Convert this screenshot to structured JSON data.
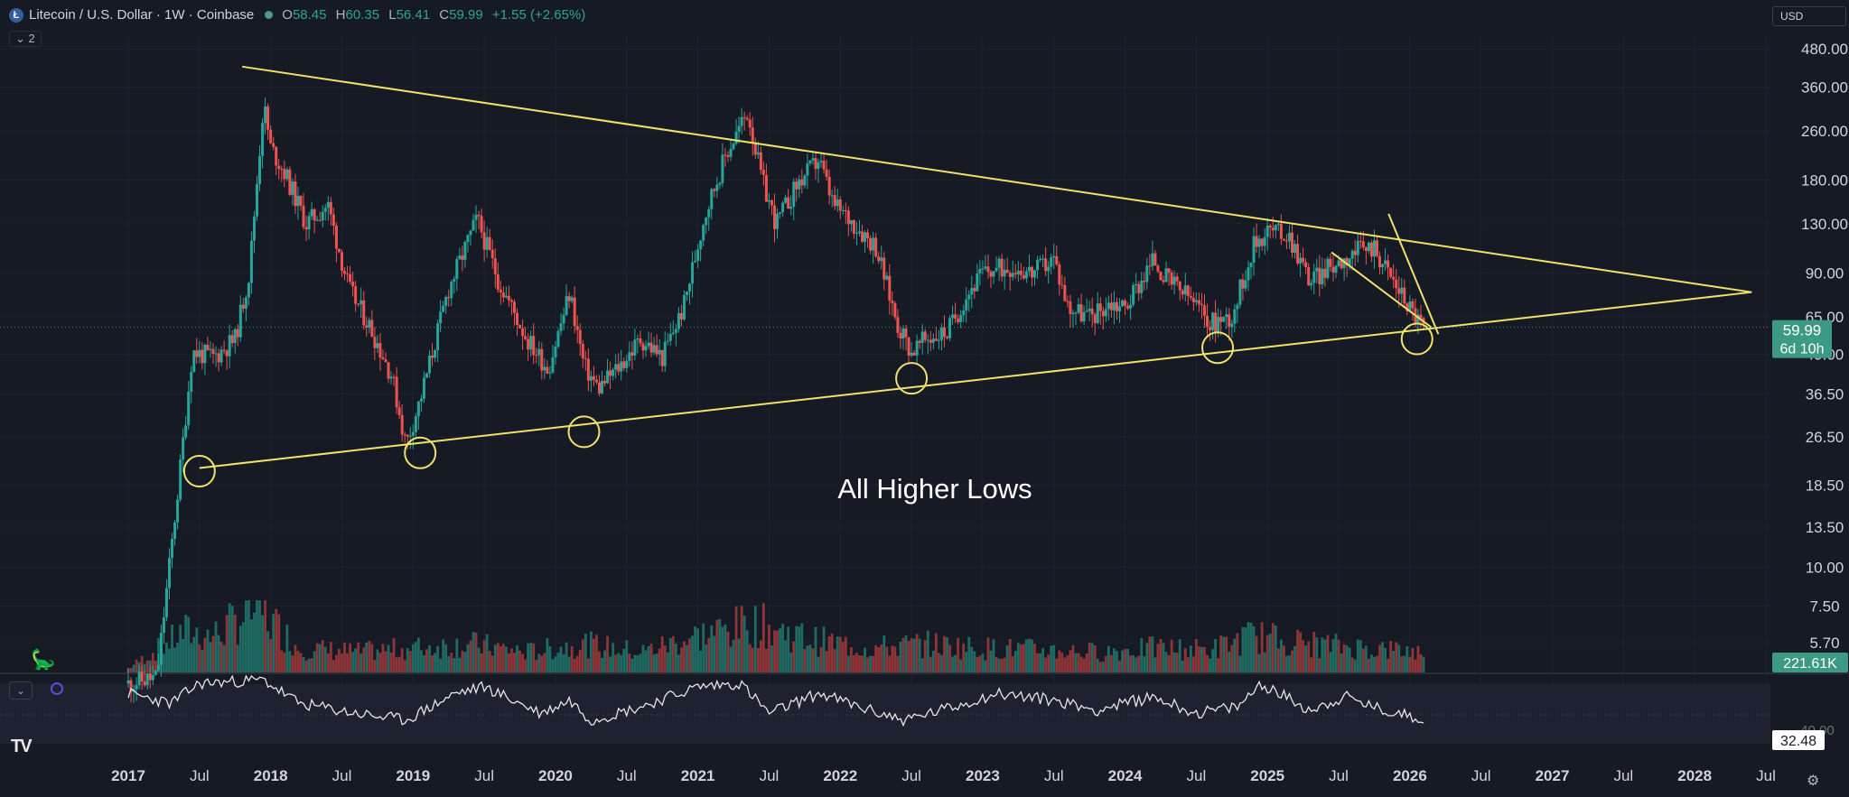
{
  "header": {
    "symbol_title": "Litecoin / U.S. Dollar · 1W · Coinbase",
    "open_label": "O",
    "open": "58.45",
    "high_label": "H",
    "high": "60.35",
    "low_label": "L",
    "low": "56.41",
    "close_label": "C",
    "close": "59.99",
    "change": "+1.55 (+2.65%)",
    "indicator_count": "2"
  },
  "currency": "USD",
  "colors": {
    "bg": "#161a25",
    "up": "#26a69a",
    "down": "#ef5350",
    "trend": "#f0e26a",
    "axis_text": "#d1d4dc",
    "price_badge": "#3c9a82"
  },
  "chart_data": {
    "type": "candlestick",
    "scale": "log",
    "price_ticks": [
      "480.00",
      "360.00",
      "260.00",
      "180.00",
      "130.00",
      "90.00",
      "65.00",
      "49.00",
      "36.50",
      "26.50",
      "18.50",
      "13.50",
      "10.00",
      "7.50",
      "5.70"
    ],
    "time_labels": [
      "2017",
      "Jul",
      "2018",
      "Jul",
      "2019",
      "Jul",
      "2020",
      "Jul",
      "2021",
      "Jul",
      "2022",
      "Jul",
      "2023",
      "Jul",
      "2024",
      "Jul",
      "2025",
      "Jul",
      "2026",
      "Jul",
      "2027",
      "Jul",
      "2028",
      "Jul"
    ],
    "time_bold": [
      true,
      false,
      true,
      false,
      true,
      false,
      true,
      false,
      true,
      false,
      true,
      false,
      true,
      false,
      true,
      false,
      true,
      false,
      true,
      false,
      true,
      false,
      true,
      false
    ],
    "last_price": "59.99",
    "countdown": "6d 10h",
    "volume_label": "221.61K",
    "indicator_value": "32.48",
    "indicator_tick": "40.00",
    "annotation": "All Higher Lows",
    "price_path": [
      [
        2017.0,
        4.2
      ],
      [
        2017.2,
        4.4
      ],
      [
        2017.35,
        18
      ],
      [
        2017.45,
        50
      ],
      [
        2017.6,
        48
      ],
      [
        2017.75,
        55
      ],
      [
        2017.85,
        90
      ],
      [
        2017.95,
        320
      ],
      [
        2018.0,
        230
      ],
      [
        2018.1,
        190
      ],
      [
        2018.25,
        130
      ],
      [
        2018.4,
        150
      ],
      [
        2018.55,
        80
      ],
      [
        2018.7,
        60
      ],
      [
        2018.85,
        42
      ],
      [
        2018.95,
        25
      ],
      [
        2019.05,
        35
      ],
      [
        2019.25,
        80
      ],
      [
        2019.45,
        135
      ],
      [
        2019.6,
        85
      ],
      [
        2019.8,
        55
      ],
      [
        2019.95,
        44
      ],
      [
        2020.1,
        78
      ],
      [
        2020.2,
        45
      ],
      [
        2020.3,
        38
      ],
      [
        2020.45,
        45
      ],
      [
        2020.6,
        55
      ],
      [
        2020.75,
        48
      ],
      [
        2020.9,
        70
      ],
      [
        2021.05,
        140
      ],
      [
        2021.2,
        220
      ],
      [
        2021.35,
        300
      ],
      [
        2021.45,
        180
      ],
      [
        2021.55,
        130
      ],
      [
        2021.7,
        175
      ],
      [
        2021.85,
        210
      ],
      [
        2021.95,
        150
      ],
      [
        2022.1,
        130
      ],
      [
        2022.25,
        110
      ],
      [
        2022.4,
        62
      ],
      [
        2022.5,
        50
      ],
      [
        2022.6,
        55
      ],
      [
        2022.75,
        58
      ],
      [
        2022.9,
        78
      ],
      [
        2023.0,
        90
      ],
      [
        2023.2,
        95
      ],
      [
        2023.35,
        90
      ],
      [
        2023.5,
        100
      ],
      [
        2023.6,
        70
      ],
      [
        2023.75,
        65
      ],
      [
        2023.9,
        72
      ],
      [
        2024.0,
        70
      ],
      [
        2024.2,
        100
      ],
      [
        2024.3,
        85
      ],
      [
        2024.45,
        75
      ],
      [
        2024.6,
        62
      ],
      [
        2024.75,
        65
      ],
      [
        2024.9,
        110
      ],
      [
        2025.0,
        125
      ],
      [
        2025.15,
        120
      ],
      [
        2025.3,
        85
      ],
      [
        2025.45,
        95
      ],
      [
        2025.6,
        105
      ],
      [
        2025.75,
        110
      ],
      [
        2025.85,
        90
      ],
      [
        2026.0,
        70
      ],
      [
        2026.1,
        59.99
      ]
    ],
    "volume_path": [
      [
        2017.0,
        0.05
      ],
      [
        2017.4,
        0.5
      ],
      [
        2017.6,
        0.45
      ],
      [
        2017.9,
        0.8
      ],
      [
        2018.2,
        0.3
      ],
      [
        2018.6,
        0.25
      ],
      [
        2019.0,
        0.3
      ],
      [
        2019.4,
        0.35
      ],
      [
        2019.8,
        0.25
      ],
      [
        2020.2,
        0.35
      ],
      [
        2020.6,
        0.25
      ],
      [
        2021.0,
        0.45
      ],
      [
        2021.4,
        0.6
      ],
      [
        2021.8,
        0.4
      ],
      [
        2022.2,
        0.3
      ],
      [
        2022.6,
        0.35
      ],
      [
        2023.0,
        0.3
      ],
      [
        2023.4,
        0.28
      ],
      [
        2023.8,
        0.25
      ],
      [
        2024.2,
        0.3
      ],
      [
        2024.6,
        0.28
      ],
      [
        2024.9,
        0.45
      ],
      [
        2025.3,
        0.35
      ],
      [
        2025.7,
        0.3
      ],
      [
        2026.1,
        0.25
      ]
    ],
    "indicator_path": [
      [
        2017.0,
        70
      ],
      [
        2017.3,
        55
      ],
      [
        2017.5,
        85
      ],
      [
        2017.95,
        90
      ],
      [
        2018.2,
        55
      ],
      [
        2018.6,
        40
      ],
      [
        2018.95,
        30
      ],
      [
        2019.3,
        70
      ],
      [
        2019.5,
        80
      ],
      [
        2019.9,
        40
      ],
      [
        2020.1,
        60
      ],
      [
        2020.25,
        30
      ],
      [
        2020.6,
        50
      ],
      [
        2021.0,
        80
      ],
      [
        2021.3,
        85
      ],
      [
        2021.5,
        40
      ],
      [
        2021.85,
        70
      ],
      [
        2022.2,
        45
      ],
      [
        2022.45,
        30
      ],
      [
        2022.8,
        50
      ],
      [
        2023.1,
        70
      ],
      [
        2023.5,
        60
      ],
      [
        2023.8,
        45
      ],
      [
        2024.2,
        65
      ],
      [
        2024.5,
        40
      ],
      [
        2024.8,
        50
      ],
      [
        2024.95,
        85
      ],
      [
        2025.3,
        45
      ],
      [
        2025.55,
        65
      ],
      [
        2025.8,
        45
      ],
      [
        2026.1,
        32.48
      ]
    ],
    "trendlines": [
      {
        "name": "upper resistance",
        "from": [
          2017.8,
          420
        ],
        "to": [
          2028.4,
          78
        ]
      },
      {
        "name": "lower support",
        "from": [
          2017.5,
          21
        ],
        "to": [
          2028.4,
          78
        ]
      },
      {
        "name": "short wedge upper",
        "from": [
          2025.85,
          140
        ],
        "to": [
          2026.2,
          57
        ]
      },
      {
        "name": "short wedge lower",
        "from": [
          2025.45,
          105
        ],
        "to": [
          2026.15,
          60
        ]
      }
    ],
    "low_circles": [
      [
        2017.5,
        20.5
      ],
      [
        2019.05,
        23.5
      ],
      [
        2020.2,
        27.5
      ],
      [
        2022.5,
        41
      ],
      [
        2024.65,
        51.5
      ],
      [
        2026.05,
        55
      ]
    ]
  }
}
